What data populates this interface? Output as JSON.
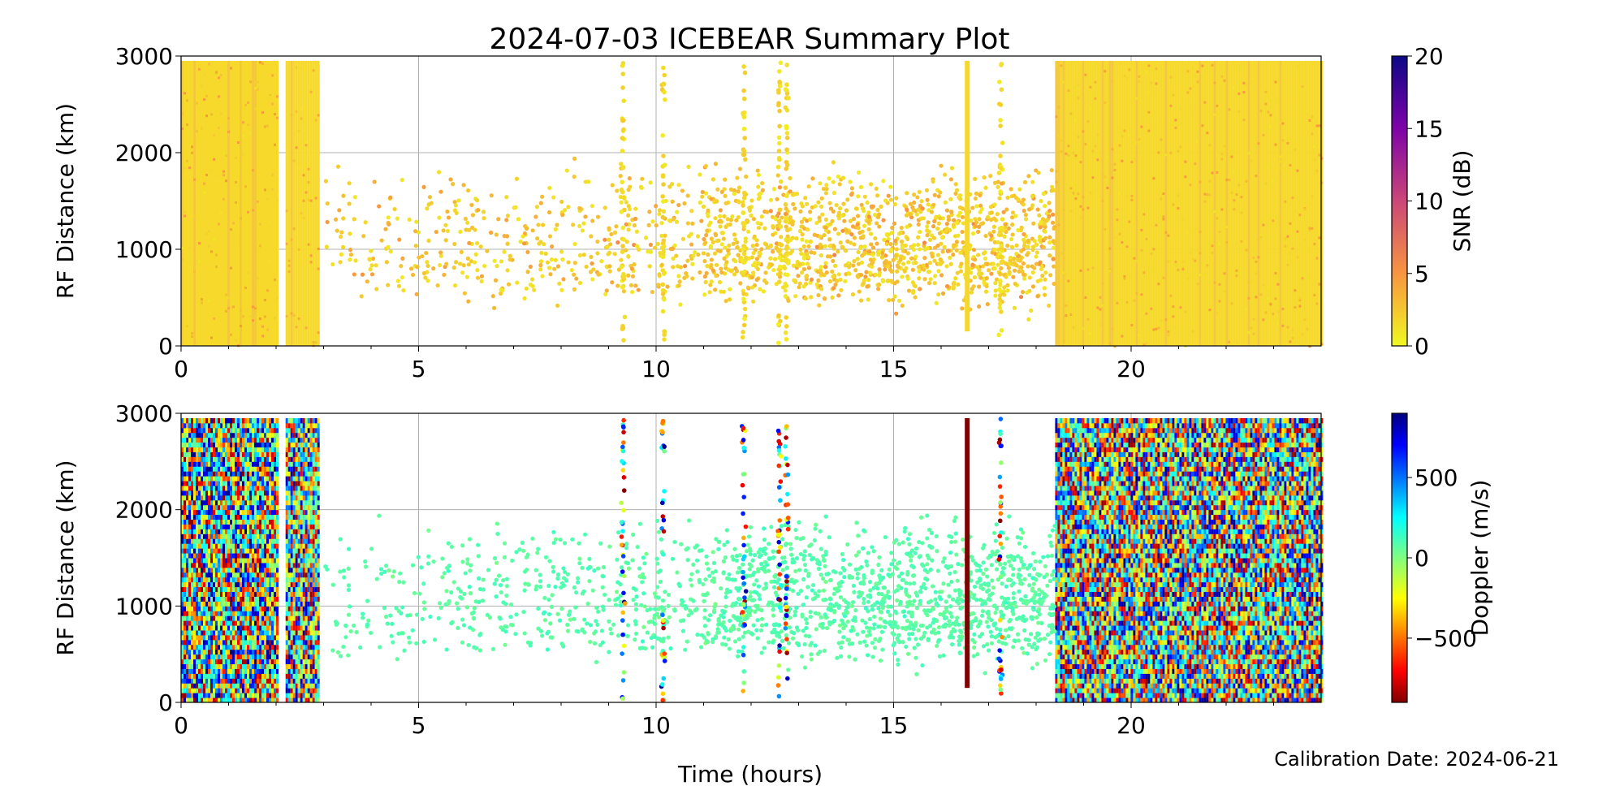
{
  "figure": {
    "title": "2024-07-03 ICEBEAR Summary Plot",
    "footer": "Calibration Date: 2024-06-21"
  },
  "chart_data": [
    {
      "type": "scatter",
      "title": "2024-07-03 ICEBEAR Summary Plot",
      "xlabel": "Time (hours)",
      "ylabel": "RF Distance (km)",
      "xlim": [
        0,
        24
      ],
      "ylim": [
        0,
        3000
      ],
      "xticks": [
        "0",
        "5",
        "10",
        "15",
        "20"
      ],
      "yticks": [
        "0",
        "1000",
        "2000",
        "3000"
      ],
      "grid": true,
      "color_variable": "SNR",
      "colorbar": {
        "label": "SNR (dB)",
        "range": [
          0,
          20
        ],
        "ticks": [
          "0",
          "5",
          "10",
          "15",
          "20"
        ],
        "colormap": "plasma_r"
      },
      "dense_intervals_hours": [
        [
          0,
          2.05
        ],
        [
          2.2,
          2.9
        ],
        [
          18.4,
          24
        ]
      ],
      "dense_distance_range_km": [
        0,
        2950
      ],
      "dense_value_typical": 0.5,
      "scatter_interval_hours": [
        2.9,
        18.4
      ],
      "scatter_distance_clusters_km": [
        800,
        1300
      ],
      "scatter_value_range": [
        0.5,
        6
      ],
      "vertical_streaks_hours": [
        9.3,
        10.15,
        11.85,
        12.6,
        12.75,
        16.55,
        17.25
      ],
      "solid_streak_hour": 16.55
    },
    {
      "type": "scatter",
      "xlabel": "Time (hours)",
      "ylabel": "RF Distance (km)",
      "xlim": [
        0,
        24
      ],
      "ylim": [
        0,
        3000
      ],
      "xticks": [
        "0",
        "5",
        "10",
        "15",
        "20"
      ],
      "yticks": [
        "0",
        "1000",
        "2000",
        "3000"
      ],
      "grid": true,
      "color_variable": "Doppler",
      "colorbar": {
        "label": "Doppler (m/s)",
        "range": [
          -900,
          900
        ],
        "ticks": [
          "−500",
          "0",
          "500"
        ],
        "tick_values": [
          -500,
          0,
          500
        ],
        "colormap": "jet"
      },
      "dense_intervals_hours": [
        [
          0,
          2.05
        ],
        [
          2.2,
          2.9
        ],
        [
          18.4,
          24
        ]
      ],
      "dense_distance_range_km": [
        0,
        2950
      ],
      "dense_value_range": [
        -900,
        900
      ],
      "scatter_interval_hours": [
        2.9,
        18.4
      ],
      "scatter_distance_clusters_km": [
        800,
        1300
      ],
      "scatter_value_typical": 80,
      "vertical_streaks_hours": [
        9.3,
        10.15,
        11.85,
        12.6,
        12.75,
        16.55,
        17.25
      ],
      "solid_streak_hour": 16.55,
      "solid_streak_value": -900
    }
  ]
}
